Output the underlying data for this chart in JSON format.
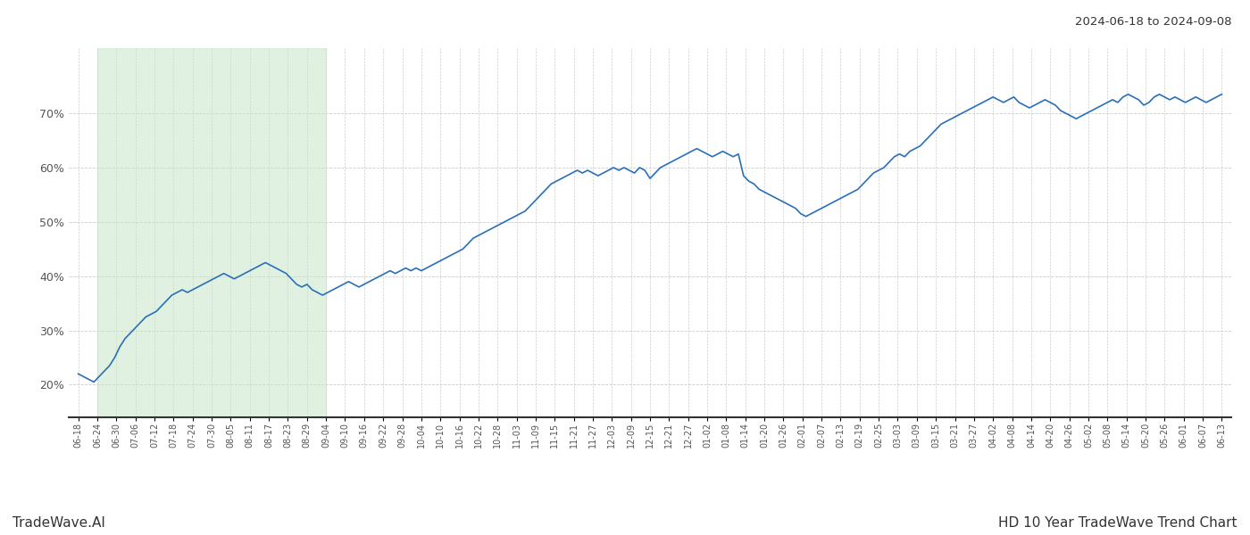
{
  "title_top_right": "2024-06-18 to 2024-09-08",
  "title_bottom_right": "HD 10 Year TradeWave Trend Chart",
  "title_bottom_left": "TradeWave.AI",
  "line_color": "#2970b8",
  "line_width": 1.2,
  "shade_color": "#c8e6c9",
  "shade_alpha": 0.55,
  "shade_start_label": "06-24",
  "shade_end_label": "09-04",
  "y_ticks": [
    20,
    30,
    40,
    50,
    60,
    70
  ],
  "ylim": [
    14,
    82
  ],
  "background_color": "#ffffff",
  "grid_color": "#cccccc",
  "x_labels": [
    "06-18",
    "06-24",
    "06-30",
    "07-06",
    "07-12",
    "07-18",
    "07-24",
    "07-30",
    "08-05",
    "08-11",
    "08-17",
    "08-23",
    "08-29",
    "09-04",
    "09-10",
    "09-16",
    "09-22",
    "09-28",
    "10-04",
    "10-10",
    "10-16",
    "10-22",
    "10-28",
    "11-03",
    "11-09",
    "11-15",
    "11-21",
    "11-27",
    "12-03",
    "12-09",
    "12-15",
    "12-21",
    "12-27",
    "01-02",
    "01-08",
    "01-14",
    "01-20",
    "01-26",
    "02-01",
    "02-07",
    "02-13",
    "02-19",
    "02-25",
    "03-03",
    "03-09",
    "03-15",
    "03-21",
    "03-27",
    "04-02",
    "04-08",
    "04-14",
    "04-20",
    "04-26",
    "05-02",
    "05-08",
    "05-14",
    "05-20",
    "05-26",
    "06-01",
    "06-07",
    "06-13"
  ],
  "y_values": [
    22.0,
    21.5,
    21.0,
    20.5,
    21.5,
    22.5,
    23.5,
    25.0,
    27.0,
    28.5,
    29.5,
    30.5,
    31.5,
    32.5,
    33.0,
    33.5,
    34.5,
    35.5,
    36.5,
    37.0,
    37.5,
    37.0,
    37.5,
    38.0,
    38.5,
    39.0,
    39.5,
    40.0,
    40.5,
    40.0,
    39.5,
    40.0,
    40.5,
    41.0,
    41.5,
    42.0,
    42.5,
    42.0,
    41.5,
    41.0,
    40.5,
    39.5,
    38.5,
    38.0,
    38.5,
    37.5,
    37.0,
    36.5,
    37.0,
    37.5,
    38.0,
    38.5,
    39.0,
    38.5,
    38.0,
    38.5,
    39.0,
    39.5,
    40.0,
    40.5,
    41.0,
    40.5,
    41.0,
    41.5,
    41.0,
    41.5,
    41.0,
    41.5,
    42.0,
    42.5,
    43.0,
    43.5,
    44.0,
    44.5,
    45.0,
    46.0,
    47.0,
    47.5,
    48.0,
    48.5,
    49.0,
    49.5,
    50.0,
    50.5,
    51.0,
    51.5,
    52.0,
    53.0,
    54.0,
    55.0,
    56.0,
    57.0,
    57.5,
    58.0,
    58.5,
    59.0,
    59.5,
    59.0,
    59.5,
    59.0,
    58.5,
    59.0,
    59.5,
    60.0,
    59.5,
    60.0,
    59.5,
    59.0,
    60.0,
    59.5,
    58.0,
    59.0,
    60.0,
    60.5,
    61.0,
    61.5,
    62.0,
    62.5,
    63.0,
    63.5,
    63.0,
    62.5,
    62.0,
    62.5,
    63.0,
    62.5,
    62.0,
    62.5,
    58.5,
    57.5,
    57.0,
    56.0,
    55.5,
    55.0,
    54.5,
    54.0,
    53.5,
    53.0,
    52.5,
    51.5,
    51.0,
    51.5,
    52.0,
    52.5,
    53.0,
    53.5,
    54.0,
    54.5,
    55.0,
    55.5,
    56.0,
    57.0,
    58.0,
    59.0,
    59.5,
    60.0,
    61.0,
    62.0,
    62.5,
    62.0,
    63.0,
    63.5,
    64.0,
    65.0,
    66.0,
    67.0,
    68.0,
    68.5,
    69.0,
    69.5,
    70.0,
    70.5,
    71.0,
    71.5,
    72.0,
    72.5,
    73.0,
    72.5,
    72.0,
    72.5,
    73.0,
    72.0,
    71.5,
    71.0,
    71.5,
    72.0,
    72.5,
    72.0,
    71.5,
    70.5,
    70.0,
    69.5,
    69.0,
    69.5,
    70.0,
    70.5,
    71.0,
    71.5,
    72.0,
    72.5,
    72.0,
    73.0,
    73.5,
    73.0,
    72.5,
    71.5,
    72.0,
    73.0,
    73.5,
    73.0,
    72.5,
    73.0,
    72.5,
    72.0,
    72.5,
    73.0,
    72.5,
    72.0,
    72.5,
    73.0,
    73.5
  ]
}
